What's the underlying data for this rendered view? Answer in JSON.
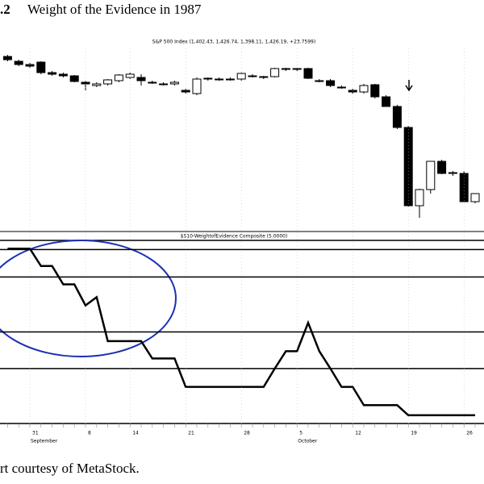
{
  "figure_label": ".2",
  "figure_title": "Weight of the Evidence in 1987",
  "caption": "rt courtesy of MetaStock.",
  "chart_data": [
    {
      "type": "candlestick",
      "title": "S&P 500 Index (1,402.43, 1,426.74, 1,398.11, 1,426.19, +23.7599)",
      "open": [
        105,
        102,
        100,
        101.5,
        95,
        94,
        93,
        89,
        87,
        88,
        90,
        92,
        92,
        89,
        88,
        88,
        84,
        82,
        91,
        91,
        91,
        91,
        93,
        92,
        92.5,
        97,
        97,
        97.5,
        90,
        90,
        86,
        84,
        83,
        87.5,
        80,
        74,
        61,
        12.5,
        22.5,
        40,
        33,
        32.5,
        15
      ],
      "high": [
        106,
        103,
        101,
        102,
        96,
        95,
        93.5,
        90,
        89,
        91,
        94,
        95,
        94,
        90,
        89,
        90,
        85,
        92,
        92,
        92,
        92,
        95,
        94,
        93,
        98,
        98,
        98,
        98,
        91,
        91,
        87,
        85,
        88,
        88,
        81,
        75,
        62,
        23,
        40,
        41,
        34,
        34,
        20
      ],
      "low": [
        102,
        99,
        98,
        94,
        93,
        92,
        89,
        84,
        86,
        87,
        89,
        91,
        87,
        88,
        87,
        87,
        82,
        81,
        90,
        90,
        90,
        90,
        92,
        91,
        92,
        96,
        96,
        91,
        89,
        86,
        85,
        82,
        82,
        79,
        74,
        60,
        12,
        5,
        20,
        32,
        31,
        15,
        14
      ],
      "close": [
        103,
        100,
        99,
        95,
        94,
        93,
        89.5,
        88,
        88,
        90.5,
        93.5,
        94,
        90,
        89,
        88,
        89,
        83,
        91,
        91.5,
        90.5,
        91,
        94.5,
        92.5,
        92.5,
        97.5,
        97.5,
        97.5,
        91.5,
        90,
        87,
        86,
        83,
        87,
        80,
        74,
        61,
        12.5,
        22.5,
        40,
        32.5,
        32.5,
        15,
        20
      ],
      "up_color": "#ffffff",
      "down_color": "#000000",
      "ylim": [
        0,
        110
      ]
    },
    {
      "type": "line",
      "title": "$S10-WeightofEvidence Composite (5.0000)",
      "categories": [
        null,
        null,
        "31",
        null,
        null,
        null,
        null,
        "8",
        null,
        null,
        null,
        "14",
        null,
        null,
        null,
        null,
        "21",
        null,
        null,
        null,
        null,
        "28",
        null,
        null,
        null,
        null,
        "5",
        null,
        null,
        null,
        null,
        "12",
        null,
        null,
        null,
        null,
        "19",
        null,
        null,
        null,
        null,
        "26",
        null
      ],
      "months": [
        "September",
        "October"
      ],
      "values": [
        95.5,
        95.5,
        95.5,
        86,
        86,
        76,
        76,
        64.5,
        69,
        45,
        45,
        45,
        45,
        35.5,
        35.5,
        35.5,
        20,
        20,
        20,
        20,
        20,
        20,
        20,
        20,
        30,
        39.5,
        39.5,
        55,
        39.5,
        30,
        20,
        20,
        10,
        10,
        10,
        10,
        4.5,
        4.5,
        4.5,
        4.5,
        4.5,
        4.5,
        4.5
      ],
      "color": "#000000",
      "hlines": [
        95,
        80,
        50,
        30
      ],
      "ylim": [
        0,
        100
      ]
    }
  ]
}
